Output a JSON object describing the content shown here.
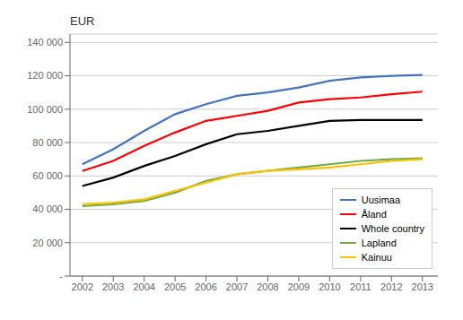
{
  "chart_data": {
    "type": "line",
    "ylabel": "EUR",
    "x": [
      2002,
      2003,
      2004,
      2005,
      2006,
      2007,
      2008,
      2009,
      2010,
      2011,
      2012,
      2013
    ],
    "series": [
      {
        "name": "Uusimaa",
        "color": "#4472C4",
        "values": [
          67000,
          76000,
          87000,
          97000,
          103000,
          108000,
          110000,
          113000,
          117000,
          119000,
          120000,
          120500
        ]
      },
      {
        "name": "Åland",
        "color": "#FF0000",
        "values": [
          63000,
          69000,
          78000,
          86000,
          93000,
          96000,
          99000,
          104000,
          106000,
          107000,
          109000,
          110500
        ]
      },
      {
        "name": "Whole country",
        "color": "#000000",
        "values": [
          54000,
          59000,
          66000,
          72000,
          79000,
          85000,
          87000,
          90000,
          93000,
          93500,
          93500,
          93500
        ]
      },
      {
        "name": "Lapland",
        "color": "#70AD47",
        "values": [
          42000,
          43000,
          45000,
          50000,
          57000,
          61000,
          63000,
          65000,
          67000,
          69000,
          70000,
          70500
        ]
      },
      {
        "name": "Kainuu",
        "color": "#FFC000",
        "values": [
          43000,
          44000,
          46000,
          51000,
          56000,
          61000,
          63000,
          64000,
          65000,
          67000,
          69000,
          70000
        ]
      }
    ],
    "xlim": [
      2001.6,
      2013.5
    ],
    "xticks": [
      2002,
      2003,
      2004,
      2005,
      2006,
      2007,
      2008,
      2009,
      2010,
      2011,
      2012,
      2013
    ],
    "ylim": [
      0,
      145000
    ],
    "yticks": [
      {
        "value": 0,
        "label": "-"
      },
      {
        "value": 20000,
        "label": "20 000"
      },
      {
        "value": 40000,
        "label": "40 000"
      },
      {
        "value": 60000,
        "label": "60 000"
      },
      {
        "value": 80000,
        "label": "80 000"
      },
      {
        "value": 100000,
        "label": "100 000"
      },
      {
        "value": 120000,
        "label": "120 000"
      },
      {
        "value": 140000,
        "label": "140 000"
      }
    ],
    "grid": true,
    "legend": "lower right"
  }
}
